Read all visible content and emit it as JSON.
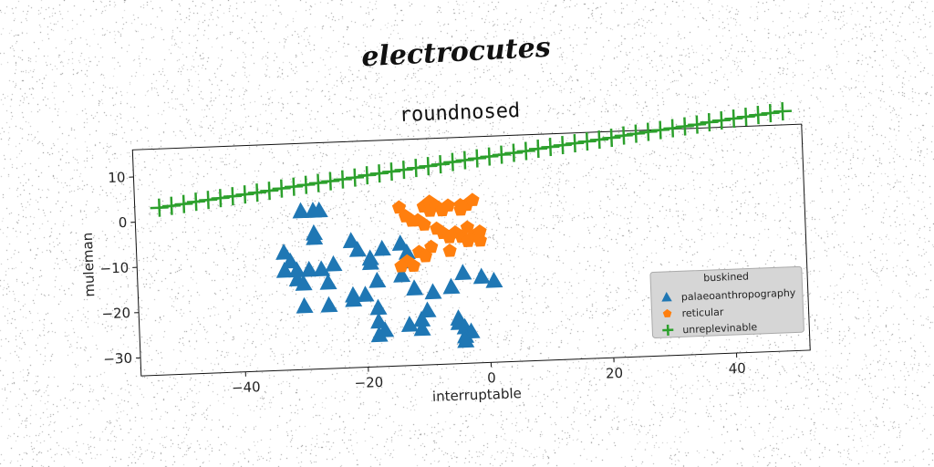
{
  "suptitle": "electrocutes",
  "chart_data": {
    "type": "scatter",
    "title": "roundnosed",
    "xlabel": "interruptable",
    "ylabel": "muleman",
    "xlim": [
      -57,
      52
    ],
    "ylim": [
      -34,
      16
    ],
    "xticks": [
      -40,
      -20,
      0,
      20,
      40
    ],
    "yticks": [
      -30,
      -20,
      -10,
      0,
      10
    ],
    "grid": false,
    "legend": {
      "title": "buskined",
      "position": "lower-right"
    },
    "series": [
      {
        "name": "palaeoanthropography",
        "marker": "triangle",
        "color": "#1f77b4",
        "points": [
          [
            -30,
            1
          ],
          [
            -28,
            1
          ],
          [
            -27,
            1
          ],
          [
            -28,
            -4
          ],
          [
            -28,
            -5
          ],
          [
            -33,
            -8
          ],
          [
            -32,
            -10
          ],
          [
            -31,
            -12
          ],
          [
            -33,
            -12
          ],
          [
            -31,
            -14
          ],
          [
            -30,
            -15
          ],
          [
            -27,
            -12
          ],
          [
            -25,
            -11
          ],
          [
            -29,
            -12
          ],
          [
            -26,
            -15
          ],
          [
            -22,
            -6
          ],
          [
            -21,
            -8
          ],
          [
            -19,
            -10
          ],
          [
            -19,
            -11
          ],
          [
            -17,
            -8
          ],
          [
            -14,
            -7
          ],
          [
            -13,
            -9
          ],
          [
            -13,
            -11
          ],
          [
            -18,
            -15
          ],
          [
            -14,
            -14
          ],
          [
            -22,
            -18
          ],
          [
            -22,
            -19
          ],
          [
            -20,
            -18
          ],
          [
            -26,
            -20
          ],
          [
            -30,
            -20
          ],
          [
            -12,
            -17
          ],
          [
            -9,
            -18
          ],
          [
            -6,
            -17
          ],
          [
            -4,
            -14
          ],
          [
            -1,
            -15
          ],
          [
            1,
            -16
          ],
          [
            -18,
            -21
          ],
          [
            -18,
            -24
          ],
          [
            -17,
            -26
          ],
          [
            -18,
            -27
          ],
          [
            -10,
            -22
          ],
          [
            -11,
            -24
          ],
          [
            -13,
            -25
          ],
          [
            -11,
            -26
          ],
          [
            -5,
            -24
          ],
          [
            -5,
            -25
          ],
          [
            -4,
            -26
          ],
          [
            -3,
            -27
          ],
          [
            -4,
            -28
          ],
          [
            -4,
            -29
          ]
        ]
      },
      {
        "name": "reticular",
        "marker": "pentagon",
        "color": "#ff7f0e",
        "points": [
          [
            -14,
            1
          ],
          [
            -13,
            -1
          ],
          [
            -10,
            1
          ],
          [
            -9,
            0
          ],
          [
            -9,
            2
          ],
          [
            -8,
            1
          ],
          [
            -7,
            0
          ],
          [
            -6,
            1
          ],
          [
            -4,
            0
          ],
          [
            -3,
            1
          ],
          [
            -2,
            2
          ],
          [
            -12,
            -2
          ],
          [
            -11,
            -2
          ],
          [
            -10,
            -3
          ],
          [
            -8,
            -4
          ],
          [
            -7,
            -5
          ],
          [
            -6,
            -6
          ],
          [
            -5,
            -5
          ],
          [
            -4,
            -6
          ],
          [
            -3,
            -7
          ],
          [
            -2,
            -6
          ],
          [
            -1,
            -7
          ],
          [
            -9,
            -8
          ],
          [
            -11,
            -9
          ],
          [
            -10,
            -10
          ],
          [
            -6,
            -9
          ],
          [
            -13,
            -11
          ],
          [
            -14,
            -12
          ],
          [
            -12,
            -12
          ],
          [
            -3,
            -4
          ],
          [
            -1,
            -5
          ],
          [
            -4,
            1
          ]
        ]
      },
      {
        "name": "unreplevinable",
        "marker": "plus",
        "color": "#2ca02c",
        "points": [
          [
            -53,
            3
          ],
          [
            -51,
            3.3
          ],
          [
            -49,
            3.6
          ],
          [
            -47,
            4
          ],
          [
            -45,
            4.3
          ],
          [
            -43,
            4.6
          ],
          [
            -41,
            4.9
          ],
          [
            -39,
            5.2
          ],
          [
            -37,
            5.5
          ],
          [
            -35,
            5.8
          ],
          [
            -33,
            6.2
          ],
          [
            -31,
            6.5
          ],
          [
            -29,
            6.8
          ],
          [
            -27,
            7.1
          ],
          [
            -25,
            7.4
          ],
          [
            -23,
            7.7
          ],
          [
            -21,
            8
          ],
          [
            -19,
            8.4
          ],
          [
            -17,
            8.7
          ],
          [
            -15,
            9
          ],
          [
            -13,
            9.3
          ],
          [
            -11,
            9.6
          ],
          [
            -9,
            9.9
          ],
          [
            -7,
            10.2
          ],
          [
            -5,
            10.6
          ],
          [
            -3,
            10.9
          ],
          [
            -1,
            11.2
          ],
          [
            1,
            11.5
          ],
          [
            3,
            11.8
          ],
          [
            5,
            12.1
          ],
          [
            7,
            12.4
          ],
          [
            9,
            12.8
          ],
          [
            11,
            13.1
          ],
          [
            13,
            13.4
          ],
          [
            15,
            13.7
          ],
          [
            17,
            14
          ],
          [
            19,
            14.3
          ],
          [
            21,
            14.6
          ],
          [
            23,
            15
          ],
          [
            25,
            15.3
          ],
          [
            27,
            15.6
          ],
          [
            29,
            15.9
          ],
          [
            31,
            16.2
          ],
          [
            33,
            16.5
          ],
          [
            35,
            16.8
          ],
          [
            37,
            17.2
          ],
          [
            39,
            17.5
          ],
          [
            41,
            17.8
          ],
          [
            43,
            18.1
          ],
          [
            45,
            18.4
          ],
          [
            47,
            18.7
          ],
          [
            49,
            19
          ]
        ]
      }
    ]
  }
}
